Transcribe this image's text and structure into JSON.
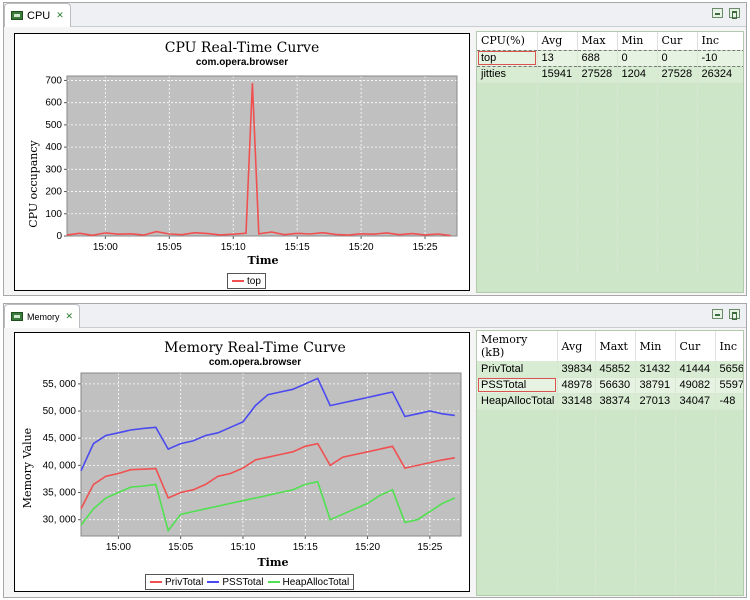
{
  "cpu": {
    "tab_label": "CPU",
    "chart": {
      "title": "CPU Real-Time Curve",
      "subtitle": "com.opera.browser",
      "xlabel": "Time",
      "ylabel": "CPU occupancy",
      "yticks": [
        "0",
        "100",
        "200",
        "300",
        "400",
        "500",
        "600",
        "700"
      ],
      "xticks": [
        "15:00",
        "15:05",
        "15:10",
        "15:15",
        "15:20",
        "15:25"
      ],
      "legend": [
        "top"
      ]
    },
    "table": {
      "headers": [
        "CPU(%)",
        "Avg",
        "Max",
        "Min",
        "Cur",
        "Inc"
      ],
      "rows": [
        [
          "top",
          "13",
          "688",
          "0",
          "0",
          "-10"
        ],
        [
          "jitties",
          "15941",
          "27528",
          "1204",
          "27528",
          "26324"
        ]
      ]
    }
  },
  "memory": {
    "tab_label": "Memory",
    "chart": {
      "title": "Memory Real-Time Curve",
      "subtitle": "com.opera.browser",
      "xlabel": "Time",
      "ylabel": "Memory Value",
      "yticks": [
        "30, 000",
        "35, 000",
        "40, 000",
        "45, 000",
        "50, 000",
        "55, 000"
      ],
      "xticks": [
        "15:00",
        "15:05",
        "15:10",
        "15:15",
        "15:20",
        "15:25"
      ],
      "legend": [
        "PrivTotal",
        "PSSTotal",
        "HeapAllocTotal"
      ]
    },
    "table": {
      "headers": [
        "Memory (kB)",
        "Avg",
        "Maxt",
        "Min",
        "Cur",
        "Inc"
      ],
      "rows": [
        [
          "PrivTotal",
          "39834",
          "45852",
          "31432",
          "41444",
          "5656"
        ],
        [
          "PSSTotal",
          "48978",
          "56630",
          "38791",
          "49082",
          "5597"
        ],
        [
          "HeapAllocTotal",
          "33148",
          "38374",
          "27013",
          "34047",
          "-48"
        ]
      ]
    }
  },
  "colors": {
    "priv": "#f05050",
    "pss": "#4a4af0",
    "heap": "#50e050",
    "top": "#f05050",
    "plot_bg": "#c0c0c0"
  },
  "chart_data": [
    {
      "type": "line",
      "title": "CPU Real-Time Curve",
      "subtitle": "com.opera.browser",
      "xlabel": "Time",
      "ylabel": "CPU occupancy",
      "ylim": [
        0,
        720
      ],
      "xlim": [
        "14:57",
        "15:27:30"
      ],
      "x": [
        "14:57",
        "14:58",
        "14:59",
        "15:00",
        "15:01",
        "15:02",
        "15:03",
        "15:04",
        "15:05",
        "15:06",
        "15:07",
        "15:08",
        "15:09",
        "15:10",
        "15:11",
        "15:11:30",
        "15:12",
        "15:13",
        "15:14",
        "15:15",
        "15:16",
        "15:17",
        "15:18",
        "15:19",
        "15:20",
        "15:21",
        "15:22",
        "15:23",
        "15:24",
        "15:25",
        "15:26",
        "15:27"
      ],
      "series": [
        {
          "name": "top",
          "values": [
            5,
            12,
            3,
            14,
            8,
            10,
            4,
            20,
            9,
            6,
            15,
            11,
            5,
            8,
            12,
            688,
            10,
            18,
            6,
            12,
            9,
            15,
            7,
            4,
            10,
            8,
            14,
            6,
            11,
            5,
            9,
            2
          ]
        }
      ],
      "legend": "bottom",
      "grid": true
    },
    {
      "type": "line",
      "title": "Memory Real-Time Curve",
      "subtitle": "com.opera.browser",
      "xlabel": "Time",
      "ylabel": "Memory Value",
      "ylim": [
        27000,
        57000
      ],
      "xlim": [
        "14:57",
        "15:27:30"
      ],
      "x": [
        "14:57",
        "14:58",
        "14:59",
        "15:00",
        "15:01",
        "15:02",
        "15:03",
        "15:04",
        "15:05",
        "15:06",
        "15:07",
        "15:08",
        "15:09",
        "15:10",
        "15:11",
        "15:12",
        "15:13",
        "15:14",
        "15:15",
        "15:16",
        "15:17",
        "15:18",
        "15:19",
        "15:20",
        "15:21",
        "15:22",
        "15:23",
        "15:24",
        "15:25",
        "15:26",
        "15:27"
      ],
      "series": [
        {
          "name": "PrivTotal",
          "values": [
            32000,
            36500,
            38000,
            38500,
            39200,
            39300,
            39400,
            34000,
            35000,
            35500,
            36500,
            38000,
            38500,
            39500,
            41000,
            41500,
            42000,
            42500,
            43500,
            44000,
            40000,
            41500,
            42000,
            42500,
            43000,
            43500,
            39500,
            40000,
            40500,
            41000,
            41400
          ]
        },
        {
          "name": "PSSTotal",
          "values": [
            39000,
            44000,
            45500,
            46000,
            46500,
            46800,
            47000,
            43000,
            44000,
            44500,
            45500,
            46000,
            47000,
            48000,
            51000,
            53000,
            53500,
            54000,
            55000,
            56000,
            51000,
            51500,
            52000,
            52500,
            53000,
            53500,
            49000,
            49500,
            50000,
            49500,
            49200
          ]
        },
        {
          "name": "HeapAllocTotal",
          "values": [
            29000,
            32000,
            34000,
            35000,
            36000,
            36200,
            36500,
            28000,
            31000,
            31500,
            32000,
            32500,
            33000,
            33500,
            34000,
            34500,
            35000,
            35500,
            36500,
            37000,
            30000,
            31000,
            32000,
            33000,
            34500,
            35500,
            29500,
            30000,
            31500,
            33000,
            34000
          ]
        }
      ],
      "legend": "bottom",
      "grid": true
    }
  ]
}
